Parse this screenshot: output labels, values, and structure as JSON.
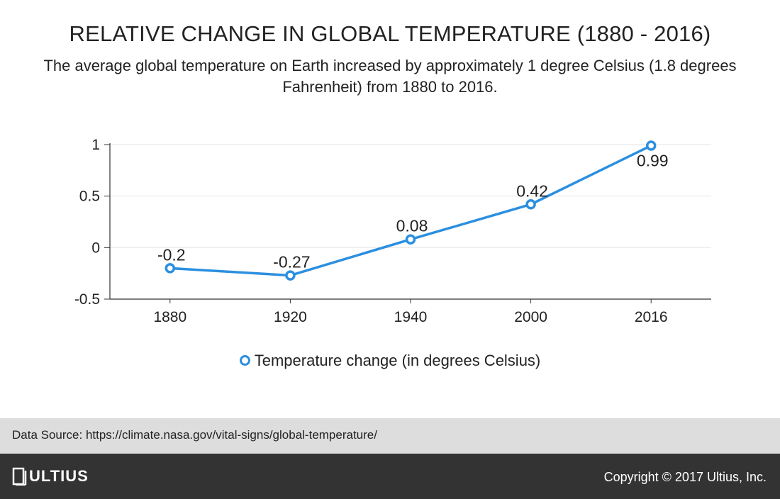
{
  "header": {
    "title": "RELATIVE CHANGE IN GLOBAL TEMPERATURE (1880 - 2016)",
    "subtitle": "The average global temperature on Earth increased by approximately 1 degree Celsius (1.8 degrees Fahrenheit) from 1880 to 2016."
  },
  "chart_data": {
    "type": "line",
    "title": "RELATIVE CHANGE IN GLOBAL TEMPERATURE (1880 - 2016)",
    "subtitle": "The average global temperature on Earth increased by approximately 1 degree Celsius (1.8 degrees Fahrenheit) from 1880 to 2016.",
    "categories": [
      "1880",
      "1920",
      "1940",
      "2000",
      "2016"
    ],
    "series": [
      {
        "name": "Temperature change (in degrees Celsius)",
        "values": [
          -0.2,
          -0.27,
          0.08,
          0.42,
          0.99
        ],
        "labels": [
          "-0.2",
          "-0.27",
          "0.08",
          "0.42",
          "0.99"
        ],
        "color": "#2b8fe0"
      }
    ],
    "y_ticks": [
      "1",
      "0.5",
      "0",
      "-0.5"
    ],
    "y_tick_values": [
      1,
      0.5,
      0,
      -0.5
    ],
    "ylim": [
      -0.5,
      1
    ],
    "xlabel": "",
    "ylabel": "",
    "grid": true,
    "legend_position": "bottom-center"
  },
  "legend": {
    "label": "Temperature change (in degrees Celsius)"
  },
  "source": {
    "text": "Data Source: https://climate.nasa.gov/vital-signs/global-temperature/"
  },
  "footer": {
    "logo_text": "ULTIUS",
    "copyright": "Copyright © 2017 Ultius, Inc."
  },
  "colors": {
    "accent": "#2b8fe0",
    "source_bar": "#dddddd",
    "footer_bg": "#333333"
  }
}
